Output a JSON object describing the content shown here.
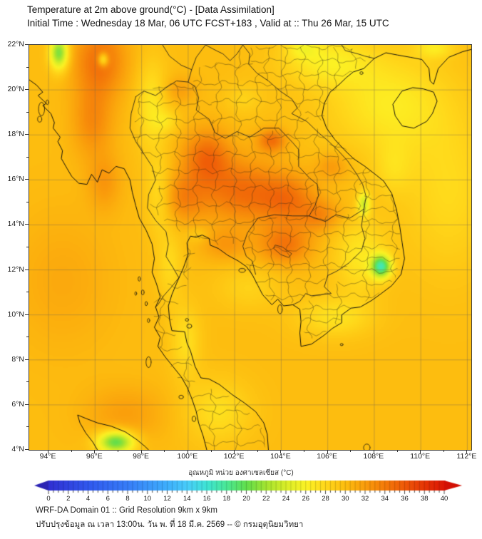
{
  "header": {
    "title": "Temperature at 2m above ground(°C) - [Data Assimilation]",
    "subtitle": "Initial Time : Wednesday 18 Mar, 06 UTC FCST+183 , Valid at :: Thu 26 Mar, 15 UTC"
  },
  "map": {
    "y_tick_labels": [
      "22°N",
      "20°N",
      "18°N",
      "16°N",
      "14°N",
      "12°N",
      "10°N",
      "8°N",
      "6°N",
      "4°N"
    ],
    "x_tick_labels": [
      "94°E",
      "96°E",
      "98°E",
      "100°E",
      "102°E",
      "104°E",
      "106°E",
      "108°E",
      "110°E",
      "112°E"
    ]
  },
  "colorbar": {
    "label": "อุณหภูมิ หน่วย องศาเซลเซียส (°C)",
    "tick_labels": [
      "0",
      "2",
      "4",
      "6",
      "8",
      "10",
      "12",
      "14",
      "16",
      "18",
      "20",
      "22",
      "24",
      "26",
      "28",
      "30",
      "32",
      "34",
      "36",
      "38",
      "40"
    ],
    "min": 0,
    "max": 40,
    "minor_tick_step": 0.5,
    "left_arrow_color": "#2C24B4",
    "right_arrow_color": "#D21004"
  },
  "footer": {
    "line1": "WRF-DA Domain 01 :: Grid Resolution 9km x 9km",
    "line2": "ปรับปรุงข้อมูล ณ เวลา 13:00น. วัน พ. ที่ 18 มี.ค. 2569 -- © กรมอุตุนิยมวิทยา"
  },
  "chart_data": {
    "type": "heatmap",
    "title": "2m air temperature (°C), WRF-DA data-assimilation forecast over Thailand / Indochina",
    "unit": "°C",
    "lon_range": [
      93.17,
      112.17
    ],
    "lat_range": [
      4,
      22
    ],
    "grid_interval_deg": 2,
    "legend_position": "bottom",
    "base_temp_c": 30,
    "color_scale": [
      [
        0,
        "#3030D2"
      ],
      [
        4,
        "#3058EE"
      ],
      [
        8,
        "#377DF8"
      ],
      [
        12,
        "#3EAFFC"
      ],
      [
        14,
        "#48CDFA"
      ],
      [
        16,
        "#3EE4D4"
      ],
      [
        18,
        "#4BE894"
      ],
      [
        20,
        "#62DE4B"
      ],
      [
        22,
        "#A5E430"
      ],
      [
        24,
        "#DAEE28"
      ],
      [
        26,
        "#FCF224"
      ],
      [
        28,
        "#FFD71A"
      ],
      [
        30,
        "#FDBD0F"
      ],
      [
        32,
        "#FA9C0B"
      ],
      [
        34,
        "#F47A09"
      ],
      [
        36,
        "#EE5807"
      ],
      [
        38,
        "#E53405"
      ],
      [
        40,
        "#DC1604"
      ]
    ],
    "features": [
      {
        "name": "myanmar-north-inland-hot-band",
        "lon": 96.2,
        "lat": 21.3,
        "sigma_lon": 1.1,
        "sigma_lat": 1.6,
        "delta_c": 4.5
      },
      {
        "name": "myanmar-central-hot-band",
        "lon": 95.9,
        "lat": 18.6,
        "sigma_lon": 0.85,
        "sigma_lat": 1.6,
        "delta_c": 3.0
      },
      {
        "name": "myanmar-south-warm",
        "lon": 96.4,
        "lat": 15.9,
        "sigma_lon": 0.7,
        "sigma_lat": 1.2,
        "delta_c": 2.2
      },
      {
        "name": "north-thailand-hot",
        "lon": 100.8,
        "lat": 17.0,
        "sigma_lon": 1.0,
        "sigma_lat": 1.2,
        "delta_c": 4.8
      },
      {
        "name": "central-thailand-hot",
        "lon": 99.8,
        "lat": 15.2,
        "sigma_lon": 1.0,
        "sigma_lat": 1.1,
        "delta_c": 3.2
      },
      {
        "name": "isan-west-hot",
        "lon": 102.3,
        "lat": 15.5,
        "sigma_lon": 1.7,
        "sigma_lat": 1.4,
        "delta_c": 4.6
      },
      {
        "name": "isan-east-hot",
        "lon": 104.3,
        "lat": 15.1,
        "sigma_lon": 1.2,
        "sigma_lat": 1.1,
        "delta_c": 4.0
      },
      {
        "name": "central-laos-hot-spot",
        "lon": 103.6,
        "lat": 17.75,
        "sigma_lon": 0.6,
        "sigma_lat": 0.5,
        "delta_c": 4.6
      },
      {
        "name": "cambodia-tonle-sap-hot",
        "lon": 104.15,
        "lat": 13.1,
        "sigma_lon": 1.1,
        "sigma_lat": 0.85,
        "delta_c": 4.2
      },
      {
        "name": "southern-laos-warm",
        "lon": 105.7,
        "lat": 14.4,
        "sigma_lon": 0.9,
        "sigma_lat": 0.7,
        "delta_c": 2.8
      },
      {
        "name": "andaman-south-warm-sea",
        "lon": 97.3,
        "lat": 5.6,
        "sigma_lon": 1.7,
        "sigma_lat": 1.2,
        "delta_c": 1.8
      },
      {
        "name": "andaman-west-warm-sea",
        "lon": 94.6,
        "lat": 11.5,
        "sigma_lon": 2.2,
        "sigma_lat": 3.0,
        "delta_c": 1.2
      },
      {
        "name": "vietnam-laos-border-warm",
        "lon": 106.2,
        "lat": 16.6,
        "sigma_lon": 0.7,
        "sigma_lat": 0.6,
        "delta_c": 2.2
      },
      {
        "name": "east-thailand-warm",
        "lon": 101.6,
        "lat": 13.1,
        "sigma_lon": 1.0,
        "sigma_lat": 0.7,
        "delta_c": 2.2
      },
      {
        "name": "chiang-rai-warm",
        "lon": 99.6,
        "lat": 20.0,
        "sigma_lon": 0.7,
        "sigma_lat": 0.6,
        "delta_c": 1.8
      },
      {
        "name": "thai-myanmar-mountains-north-cool",
        "lon": 98.45,
        "lat": 19.3,
        "sigma_lon": 0.65,
        "sigma_lat": 2.0,
        "delta_c": -3.2
      },
      {
        "name": "thai-myanmar-mountains-central-cool",
        "lon": 98.75,
        "lat": 15.3,
        "sigma_lon": 0.55,
        "sigma_lat": 1.6,
        "delta_c": -2.8
      },
      {
        "name": "peninsula-mountains-north-cool",
        "lon": 99.2,
        "lat": 12.2,
        "sigma_lon": 0.55,
        "sigma_lat": 1.6,
        "delta_c": -2.2
      },
      {
        "name": "peninsula-mountains-south-cool",
        "lon": 99.9,
        "lat": 8.8,
        "sigma_lon": 0.65,
        "sigma_lat": 1.6,
        "delta_c": -2.6
      },
      {
        "name": "malaysia-interior-cool",
        "lon": 101.3,
        "lat": 5.7,
        "sigma_lon": 1.4,
        "sigma_lat": 1.4,
        "delta_c": -2.6
      },
      {
        "name": "north-vietnam-cool",
        "lon": 105.9,
        "lat": 21.3,
        "sigma_lon": 1.9,
        "sigma_lat": 1.1,
        "delta_c": -3.3
      },
      {
        "name": "gulf-of-tonkin-hainan-cool",
        "lon": 108.6,
        "lat": 19.4,
        "sigma_lon": 2.6,
        "sigma_lat": 2.2,
        "delta_c": -3.4
      },
      {
        "name": "south-china-sea-east-cool",
        "lon": 111.2,
        "lat": 15.5,
        "sigma_lon": 2.0,
        "sigma_lat": 3.5,
        "delta_c": -2.2
      },
      {
        "name": "south-vietnam-coast-cool",
        "lon": 107.4,
        "lat": 12.6,
        "sigma_lon": 1.1,
        "sigma_lat": 1.6,
        "delta_c": -3.2
      },
      {
        "name": "mekong-delta-cool",
        "lon": 106.3,
        "lat": 9.9,
        "sigma_lon": 1.6,
        "sigma_lat": 0.9,
        "delta_c": -2.8
      },
      {
        "name": "gulf-near-cambodia-cool",
        "lon": 102.6,
        "lat": 11.2,
        "sigma_lon": 1.4,
        "sigma_lat": 1.0,
        "delta_c": -1.6
      },
      {
        "name": "upper-gulf-cool",
        "lon": 100.4,
        "lat": 13.55,
        "sigma_lon": 0.5,
        "sigma_lat": 0.35,
        "delta_c": -1.5
      },
      {
        "name": "chiang-mai-valley-cool",
        "lon": 99.1,
        "lat": 18.6,
        "sigma_lon": 0.5,
        "sigma_lat": 0.5,
        "delta_c": -2.0
      },
      {
        "name": "north-laos-cool",
        "lon": 102.4,
        "lat": 19.6,
        "sigma_lon": 0.8,
        "sigma_lat": 0.7,
        "delta_c": -1.6
      },
      {
        "name": "top-edge-yunnan-cool",
        "lon": 104.9,
        "lat": 21.9,
        "sigma_lon": 0.7,
        "sigma_lat": 0.5,
        "delta_c": -2.5
      },
      {
        "name": "china-coast-cool-patch",
        "lon": 110.6,
        "lat": 21.85,
        "sigma_lon": 0.8,
        "sigma_lat": 0.45,
        "delta_c": -3.0
      },
      {
        "name": "danang-coast-cool",
        "lon": 108.8,
        "lat": 16.5,
        "sigma_lon": 0.8,
        "sigma_lat": 1.2,
        "delta_c": -1.8
      },
      {
        "name": "kachin-hills-cold-spot",
        "lon": 94.45,
        "lat": 21.65,
        "sigma_lon": 0.4,
        "sigma_lat": 0.75,
        "delta_c": -9.5
      },
      {
        "name": "shan-hills-cold-spot",
        "lon": 96.35,
        "lat": 21.35,
        "sigma_lon": 0.22,
        "sigma_lat": 0.3,
        "delta_c": -6.5
      },
      {
        "name": "annamite-ridge-cold-streak",
        "lon": 107.55,
        "lat": 14.95,
        "sigma_lon": 0.28,
        "sigma_lat": 0.55,
        "delta_c": -6.0
      },
      {
        "name": "dalat-highlands-cold-spot",
        "lon": 108.3,
        "lat": 12.15,
        "sigma_lon": 0.42,
        "sigma_lat": 0.5,
        "delta_c": -11.5
      },
      {
        "name": "sumatra-aceh-cold-spot",
        "lon": 96.9,
        "lat": 4.35,
        "sigma_lon": 0.8,
        "sigma_lat": 0.5,
        "delta_c": -10.5
      }
    ]
  }
}
